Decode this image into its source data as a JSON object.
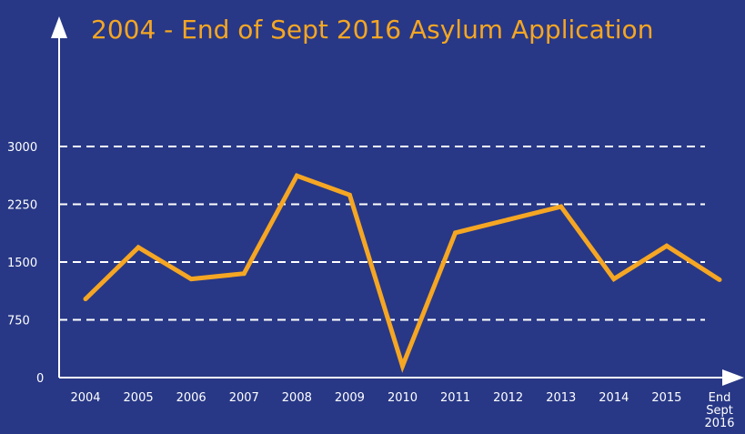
{
  "colors": {
    "background": "#283886",
    "line": "#F5A623",
    "title": "#F5A623",
    "axis": "#ffffff",
    "grid": "#ffffff",
    "text": "#ffffff"
  },
  "chart_data": {
    "type": "line",
    "title": "2004 - End of Sept 2016 Asylum Application",
    "xlabel": "",
    "ylabel": "",
    "categories": [
      "2004",
      "2005",
      "2006",
      "2007",
      "2008",
      "2009",
      "2010",
      "2011",
      "2012",
      "2013",
      "2014",
      "2015",
      "End Sept 2016"
    ],
    "series": [
      {
        "values": [
          1020,
          1690,
          1280,
          1350,
          2620,
          2370,
          150,
          1880,
          2050,
          2220,
          1280,
          1710,
          1270
        ]
      }
    ],
    "yticks": [
      0,
      750,
      1500,
      2250,
      3000
    ],
    "ylim": [
      0,
      3000
    ],
    "grid": "horizontal dashed",
    "legend": "none"
  }
}
